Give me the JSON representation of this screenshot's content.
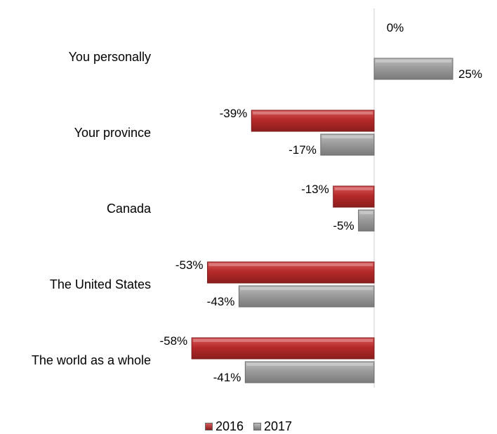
{
  "chart_data": {
    "type": "bar",
    "orientation": "horizontal",
    "categories": [
      "You personally",
      "Your province",
      "Canada",
      "The United States",
      "The world as a whole"
    ],
    "series": [
      {
        "name": "2016",
        "values": [
          0,
          -39,
          -13,
          -53,
          -58
        ],
        "labels": [
          "0%",
          "-39%",
          "-13%",
          "-53%",
          "-58%"
        ],
        "color": "#b52a2a"
      },
      {
        "name": "2017",
        "values": [
          25,
          -17,
          -5,
          -43,
          -41
        ],
        "labels": [
          "25%",
          "-17%",
          "-5%",
          "-43%",
          "-41%"
        ],
        "color": "#9b9b9b"
      }
    ],
    "xlim": [
      -60,
      40
    ],
    "grid": false,
    "legend_position": "bottom"
  },
  "legend": {
    "items": [
      {
        "label": "2016",
        "color": "#b52a2a"
      },
      {
        "label": "2017",
        "color": "#9b9b9b"
      }
    ]
  }
}
